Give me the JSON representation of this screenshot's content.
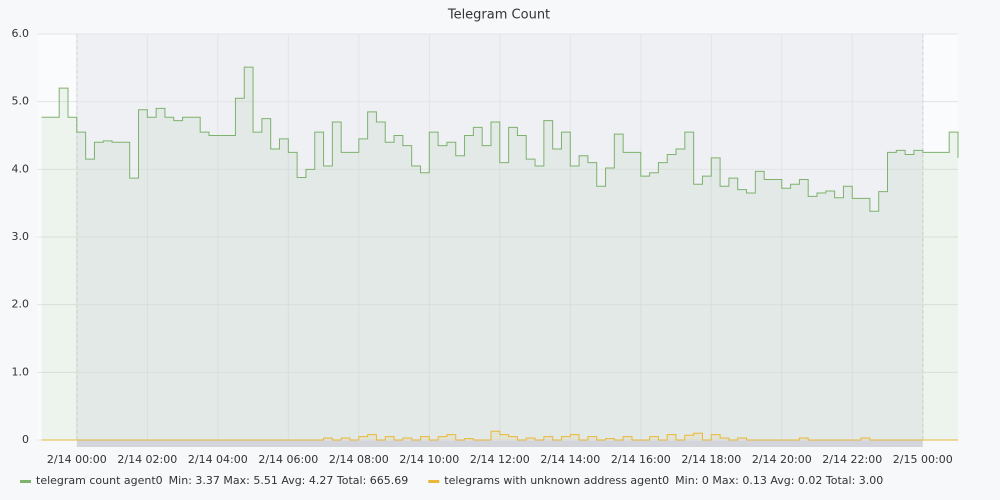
{
  "chart_data": {
    "type": "line",
    "title": "Telegram Count",
    "x": [
      -1,
      -0.75,
      -0.5,
      -0.25,
      0,
      0.25,
      0.5,
      0.75,
      1,
      1.25,
      1.5,
      1.75,
      2,
      2.25,
      2.5,
      2.75,
      3,
      3.25,
      3.5,
      3.75,
      4,
      4.25,
      4.5,
      4.75,
      5,
      5.25,
      5.5,
      5.75,
      6,
      6.25,
      6.5,
      6.75,
      7,
      7.25,
      7.5,
      7.75,
      8,
      8.25,
      8.5,
      8.75,
      9,
      9.25,
      9.5,
      9.75,
      10,
      10.25,
      10.5,
      10.75,
      11,
      11.25,
      11.5,
      11.75,
      12,
      12.25,
      12.5,
      12.75,
      13,
      13.25,
      13.5,
      13.75,
      14,
      14.25,
      14.5,
      14.75,
      15,
      15.25,
      15.5,
      15.75,
      16,
      16.25,
      16.5,
      16.75,
      17,
      17.25,
      17.5,
      17.75,
      18,
      18.25,
      18.5,
      18.75,
      19,
      19.25,
      19.5,
      19.75,
      20,
      20.25,
      20.5,
      20.75,
      21,
      21.25,
      21.5,
      21.75,
      22,
      22.25,
      22.5,
      22.75,
      23,
      23.25,
      23.5,
      23.75,
      24,
      24.25,
      24.5,
      24.75,
      25
    ],
    "series": [
      {
        "name": "telegram count agent0",
        "stats": "Min: 3.37  Max: 5.51  Avg: 4.27  Total: 665.69",
        "color": "#7eb26d",
        "values": [
          4.77,
          4.77,
          5.2,
          4.77,
          4.55,
          4.15,
          4.4,
          4.42,
          4.4,
          4.4,
          3.87,
          4.88,
          4.77,
          4.9,
          4.77,
          4.72,
          4.77,
          4.77,
          4.55,
          4.5,
          4.5,
          4.5,
          5.05,
          5.51,
          4.55,
          4.75,
          4.3,
          4.45,
          4.25,
          3.88,
          4.0,
          4.55,
          4.05,
          4.7,
          4.25,
          4.25,
          4.45,
          4.85,
          4.7,
          4.4,
          4.5,
          4.35,
          4.05,
          3.95,
          4.55,
          4.35,
          4.4,
          4.2,
          4.5,
          4.62,
          4.35,
          4.7,
          4.1,
          4.62,
          4.5,
          4.15,
          4.05,
          4.72,
          4.3,
          4.55,
          4.05,
          4.2,
          4.1,
          3.75,
          4.02,
          4.52,
          4.25,
          4.25,
          3.9,
          3.95,
          4.1,
          4.22,
          4.3,
          4.55,
          3.78,
          3.9,
          4.17,
          3.75,
          3.87,
          3.7,
          3.65,
          3.97,
          3.85,
          3.85,
          3.72,
          3.78,
          3.85,
          3.6,
          3.65,
          3.68,
          3.58,
          3.75,
          3.57,
          3.57,
          3.38,
          3.67,
          4.25,
          4.28,
          4.22,
          4.28,
          4.25,
          4.25,
          4.25,
          4.55,
          4.17
        ]
      },
      {
        "name": "telegrams with unknown address agent0",
        "stats": "Min: 0  Max: 0.13  Avg: 0.02  Total: 3.00",
        "color": "#eab839",
        "values": [
          0,
          0,
          0,
          0,
          0,
          0,
          0,
          0,
          0,
          0,
          0,
          0,
          0,
          0,
          0,
          0,
          0,
          0,
          0,
          0,
          0,
          0,
          0,
          0,
          0,
          0,
          0,
          0,
          0,
          0,
          0,
          0,
          0.03,
          0,
          0.03,
          0,
          0.05,
          0.08,
          0,
          0.05,
          0,
          0.03,
          0,
          0.05,
          0,
          0.05,
          0.08,
          0,
          0.02,
          0,
          0,
          0.13,
          0.08,
          0.05,
          0,
          0.03,
          0,
          0.05,
          0,
          0.05,
          0.08,
          0,
          0.05,
          0,
          0.02,
          0,
          0.05,
          0,
          0,
          0.05,
          0,
          0.08,
          0,
          0.07,
          0.1,
          0,
          0.08,
          0.03,
          0,
          0.03,
          0,
          0,
          0,
          0,
          0,
          0,
          0.03,
          0,
          0,
          0,
          0,
          0,
          0,
          0.03,
          0,
          0,
          0,
          0,
          0,
          0,
          0,
          0,
          0,
          0,
          0
        ]
      }
    ],
    "xlim": [
      -1.13,
      25.0
    ],
    "xticks": [
      {
        "value": 0,
        "label": "2/14 00:00"
      },
      {
        "value": 2,
        "label": "2/14 02:00"
      },
      {
        "value": 4,
        "label": "2/14 04:00"
      },
      {
        "value": 6,
        "label": "2/14 06:00"
      },
      {
        "value": 8,
        "label": "2/14 08:00"
      },
      {
        "value": 10,
        "label": "2/14 10:00"
      },
      {
        "value": 12,
        "label": "2/14 12:00"
      },
      {
        "value": 14,
        "label": "2/14 14:00"
      },
      {
        "value": 16,
        "label": "2/14 16:00"
      },
      {
        "value": 18,
        "label": "2/14 18:00"
      },
      {
        "value": 20,
        "label": "2/14 20:00"
      },
      {
        "value": 22,
        "label": "2/14 22:00"
      },
      {
        "value": 24,
        "label": "2/15 00:00"
      }
    ],
    "ylim": [
      0,
      6
    ],
    "yticks": [
      0,
      {
        "value": 1,
        "label": "1.0"
      },
      {
        "value": 2,
        "label": "2.0"
      },
      {
        "value": 3,
        "label": "3.0"
      },
      {
        "value": 4,
        "label": "4.0"
      },
      {
        "value": 5,
        "label": "5.0"
      },
      {
        "value": 6,
        "label": "6.0"
      }
    ],
    "region": [
      0,
      24
    ],
    "grid": true,
    "step": true,
    "legend": "bottom"
  }
}
